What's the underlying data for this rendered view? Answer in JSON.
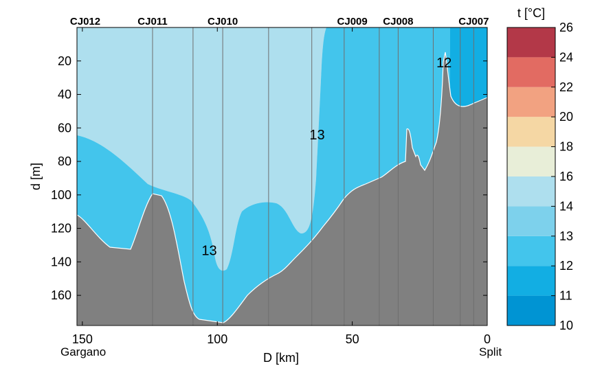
{
  "chart_data": {
    "type": "heatmap",
    "xlabel": "D [km]",
    "ylabel": "d [m]",
    "x_ticks": [
      150,
      100,
      50,
      0
    ],
    "y_ticks": [
      20,
      40,
      60,
      80,
      100,
      120,
      140,
      160
    ],
    "xlim": [
      152,
      0
    ],
    "ylim": [
      0,
      178
    ],
    "x_reversed": true,
    "y_reversed": true,
    "x_endpoints": {
      "left": "Gargano",
      "right": "Split"
    },
    "stations": [
      {
        "name": "CJ012",
        "D": 152
      },
      {
        "name": "CJ011",
        "D": 124
      },
      {
        "name": "CJ010",
        "D": 98
      },
      {
        "name": "CJ009",
        "D": 50
      },
      {
        "name": "CJ008",
        "D": 33
      },
      {
        "name": "CJ007",
        "D": 5
      }
    ],
    "cast_lines_D": [
      124,
      109,
      98,
      81,
      65,
      53,
      40,
      33,
      20,
      10,
      5
    ],
    "colorbar": {
      "title": "t [°C]",
      "ticks": [
        10,
        11,
        12,
        13,
        14,
        16,
        18,
        20,
        22,
        24,
        26
      ],
      "colors": [
        "#0094d3",
        "#12aee3",
        "#43c5ec",
        "#7dd1ec",
        "#aedfee",
        "#e8eed8",
        "#f5d7a4",
        "#f2a281",
        "#e26b62",
        "#b33848"
      ]
    },
    "contour_labels": [
      {
        "text": "13",
        "D": 63,
        "d": 64
      },
      {
        "text": "13",
        "D": 103,
        "d": 133
      },
      {
        "text": "12",
        "D": 16,
        "d": 21
      }
    ],
    "colors": {
      "seabed": "#808080",
      "cast_line": "#6e6e6e"
    }
  }
}
